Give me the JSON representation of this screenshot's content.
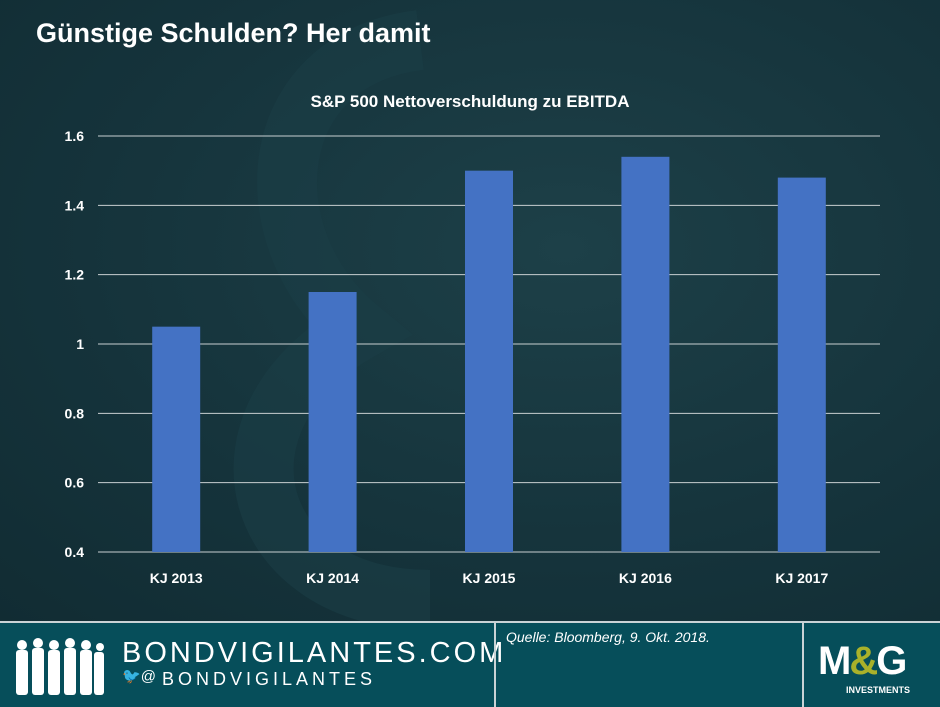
{
  "header": {
    "title": "Günstige Schulden? Her damit"
  },
  "chart_data": {
    "type": "bar",
    "title": "S&P 500 Nettoverschuldung zu EBITDA",
    "categories": [
      "KJ 2013",
      "KJ 2014",
      "KJ 2015",
      "KJ 2016",
      "KJ 2017"
    ],
    "values": [
      1.05,
      1.15,
      1.5,
      1.54,
      1.48
    ],
    "ylim": [
      0.4,
      1.6
    ],
    "yticks": [
      "0.4",
      "0.6",
      "0.8",
      "1",
      "1.2",
      "1.4",
      "1.6"
    ],
    "grid": true,
    "bar_color": "#4472c4",
    "xlabel": "",
    "ylabel": ""
  },
  "footer": {
    "site": "BONDVIGILANTES.COM",
    "twitter_at": "@",
    "handle": "BONDVIGILANTES",
    "source": "Quelle: Bloomberg, 9. Okt. 2018.",
    "logo_text": "M&G",
    "logo_sub": "INVESTMENTS"
  }
}
